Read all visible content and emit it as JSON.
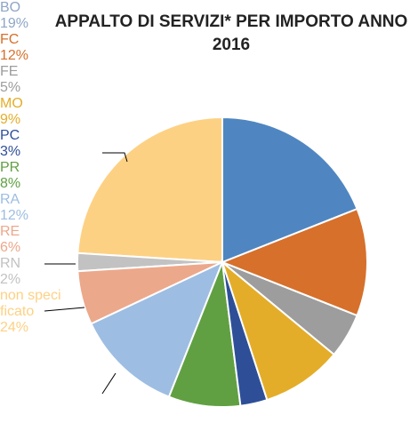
{
  "chart_data": {
    "type": "pie",
    "title": "APPALTO DI SERVIZI*  PER IMPORTO ANNO 2016",
    "categories": [
      "BO",
      "FC",
      "FE",
      "MO",
      "PC",
      "PR",
      "RA",
      "RE",
      "RN",
      "non specificato"
    ],
    "values": [
      19,
      12,
      5,
      9,
      3,
      8,
      12,
      6,
      2,
      24
    ],
    "value_labels": [
      "19%",
      "12%",
      "5%",
      "9%",
      "3%",
      "8%",
      "12%",
      "6%",
      "2%",
      "24%"
    ],
    "colors": [
      "#4f86c1",
      "#d6702b",
      "#9d9d9d",
      "#e4ad29",
      "#2e4f98",
      "#60a042",
      "#9ebde2",
      "#eca88b",
      "#c2c2c2",
      "#fdd184"
    ],
    "label_colors": [
      "#8ea6c6",
      "#d6702b",
      "#9d9d9d",
      "#e4ad29",
      "#2e4f98",
      "#60a042",
      "#9ebde2",
      "#eca88b",
      "#c2c2c2",
      "#fdd184"
    ]
  }
}
